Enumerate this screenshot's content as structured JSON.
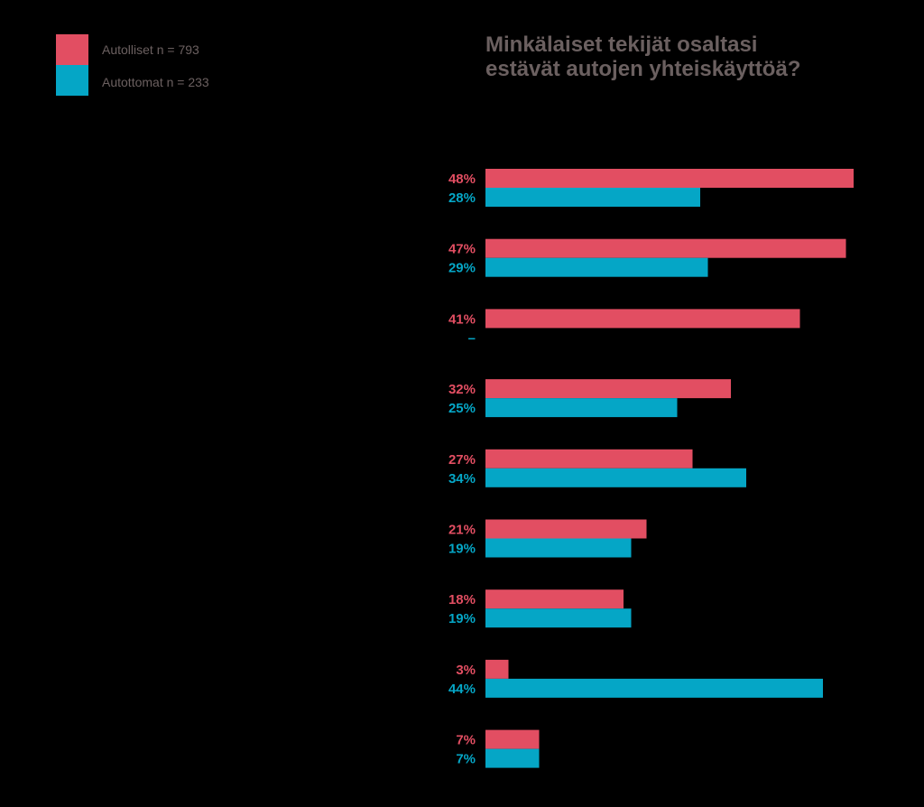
{
  "chart_data": {
    "type": "bar",
    "orientation": "horizontal",
    "title": [
      "Minkälaiset tekijät osaltasi",
      "estävät autojen yhteiskäyttöä?"
    ],
    "xlim": [
      0,
      48
    ],
    "grid": false,
    "legend_position": "top-left",
    "categories": [
      "",
      "",
      "",
      "",
      "",
      "",
      "",
      "",
      ""
    ],
    "series": [
      {
        "name": "Autolliset n = 793",
        "color": "#e24e62",
        "values": [
          48,
          47,
          41,
          32,
          27,
          21,
          18,
          3,
          7
        ],
        "labels": [
          "48%",
          "47%",
          "41%",
          "32%",
          "27%",
          "21%",
          "18%",
          "3%",
          "7%"
        ]
      },
      {
        "name": "Autottomat n = 233",
        "color": "#05a6c6",
        "values": [
          28,
          29,
          null,
          25,
          34,
          19,
          19,
          44,
          7
        ],
        "labels": [
          "28%",
          "29%",
          "–",
          "25%",
          "34%",
          "19%",
          "19%",
          "44%",
          "7%"
        ]
      }
    ]
  },
  "colors": {
    "background": "#000000",
    "title": "#6b6060",
    "legend_text": "#6b6060"
  }
}
